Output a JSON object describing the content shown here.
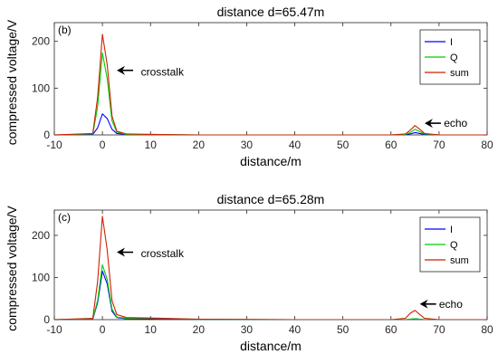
{
  "chart_data": [
    {
      "type": "line",
      "panel_label": "(b)",
      "title": "distance d=65.47m",
      "xlabel": "distance/m",
      "ylabel": "compressed voltage/V",
      "xlim": [
        -10,
        80
      ],
      "ylim": [
        0,
        240
      ],
      "xticks": [
        -10,
        0,
        10,
        20,
        30,
        40,
        50,
        60,
        70,
        80
      ],
      "yticks": [
        0,
        100,
        200
      ],
      "grid": false,
      "legend": "top-right",
      "series": [
        {
          "name": "I",
          "color": "#0000ff",
          "x": [
            -10,
            -2,
            -1,
            0,
            1,
            2,
            3,
            5,
            10,
            20,
            40,
            60,
            63,
            64,
            65,
            66,
            67,
            70,
            80
          ],
          "y": [
            0,
            1,
            15,
            45,
            35,
            12,
            3,
            1,
            0,
            0,
            0,
            0,
            0.5,
            2,
            5,
            3,
            1,
            0,
            0
          ]
        },
        {
          "name": "Q",
          "color": "#00cc00",
          "x": [
            -10,
            -2,
            -1,
            0,
            1,
            2,
            3,
            5,
            10,
            20,
            40,
            60,
            63,
            64,
            65,
            66,
            67,
            70,
            80
          ],
          "y": [
            0,
            2,
            60,
            175,
            120,
            30,
            6,
            1,
            1,
            0,
            0,
            0,
            1,
            5,
            12,
            7,
            2,
            0,
            0
          ]
        },
        {
          "name": "sum",
          "color": "#cc2200",
          "x": [
            -10,
            -2,
            -1,
            0,
            1,
            2,
            3,
            5,
            10,
            20,
            40,
            60,
            63,
            64,
            65,
            66,
            67,
            70,
            80
          ],
          "y": [
            0,
            3,
            80,
            215,
            150,
            40,
            8,
            2,
            1,
            0,
            0,
            0,
            2,
            10,
            20,
            12,
            3,
            0,
            0
          ]
        }
      ],
      "annotations": [
        {
          "text": "crosstalk",
          "arrow_to": [
            3,
            138
          ],
          "label_at": [
            8,
            135
          ]
        },
        {
          "text": "echo",
          "arrow_to": [
            67,
            25
          ],
          "label_at": [
            71,
            25
          ]
        }
      ]
    },
    {
      "type": "line",
      "panel_label": "(c)",
      "title": "distance d=65.28m",
      "xlabel": "distance/m",
      "ylabel": "compressed voltage/V",
      "xlim": [
        -10,
        80
      ],
      "ylim": [
        0,
        260
      ],
      "xticks": [
        -10,
        0,
        10,
        20,
        30,
        40,
        50,
        60,
        70,
        80
      ],
      "yticks": [
        0,
        100,
        200
      ],
      "grid": false,
      "legend": "top-right",
      "series": [
        {
          "name": "I",
          "color": "#0000ff",
          "x": [
            -10,
            -2,
            -1,
            0,
            1,
            2,
            3,
            5,
            10,
            20,
            40,
            60,
            63,
            64,
            65,
            66,
            67,
            70,
            80
          ],
          "y": [
            0,
            1,
            40,
            115,
            85,
            20,
            5,
            2,
            1,
            0,
            0,
            0,
            0,
            1,
            2,
            1,
            0,
            0,
            0
          ]
        },
        {
          "name": "Q",
          "color": "#00cc00",
          "x": [
            -10,
            -2,
            -1,
            0,
            1,
            2,
            3,
            5,
            10,
            20,
            40,
            60,
            63,
            64,
            65,
            66,
            67,
            70,
            80
          ],
          "y": [
            0,
            2,
            45,
            130,
            95,
            25,
            6,
            3,
            3,
            1,
            0,
            0,
            0,
            1,
            2,
            1,
            0,
            0,
            0
          ]
        },
        {
          "name": "sum",
          "color": "#cc2200",
          "x": [
            -10,
            -2,
            -1,
            0,
            1,
            2,
            3,
            5,
            10,
            20,
            40,
            60,
            63,
            64,
            65,
            66,
            67,
            70,
            80
          ],
          "y": [
            0,
            3,
            90,
            245,
            165,
            45,
            12,
            5,
            4,
            1,
            0,
            0,
            3,
            15,
            22,
            12,
            3,
            0,
            0
          ]
        }
      ],
      "annotations": [
        {
          "text": "crosstalk",
          "arrow_to": [
            3,
            160
          ],
          "label_at": [
            8,
            157
          ]
        },
        {
          "text": "echo",
          "arrow_to": [
            66,
            37
          ],
          "label_at": [
            70,
            37
          ]
        }
      ]
    }
  ]
}
